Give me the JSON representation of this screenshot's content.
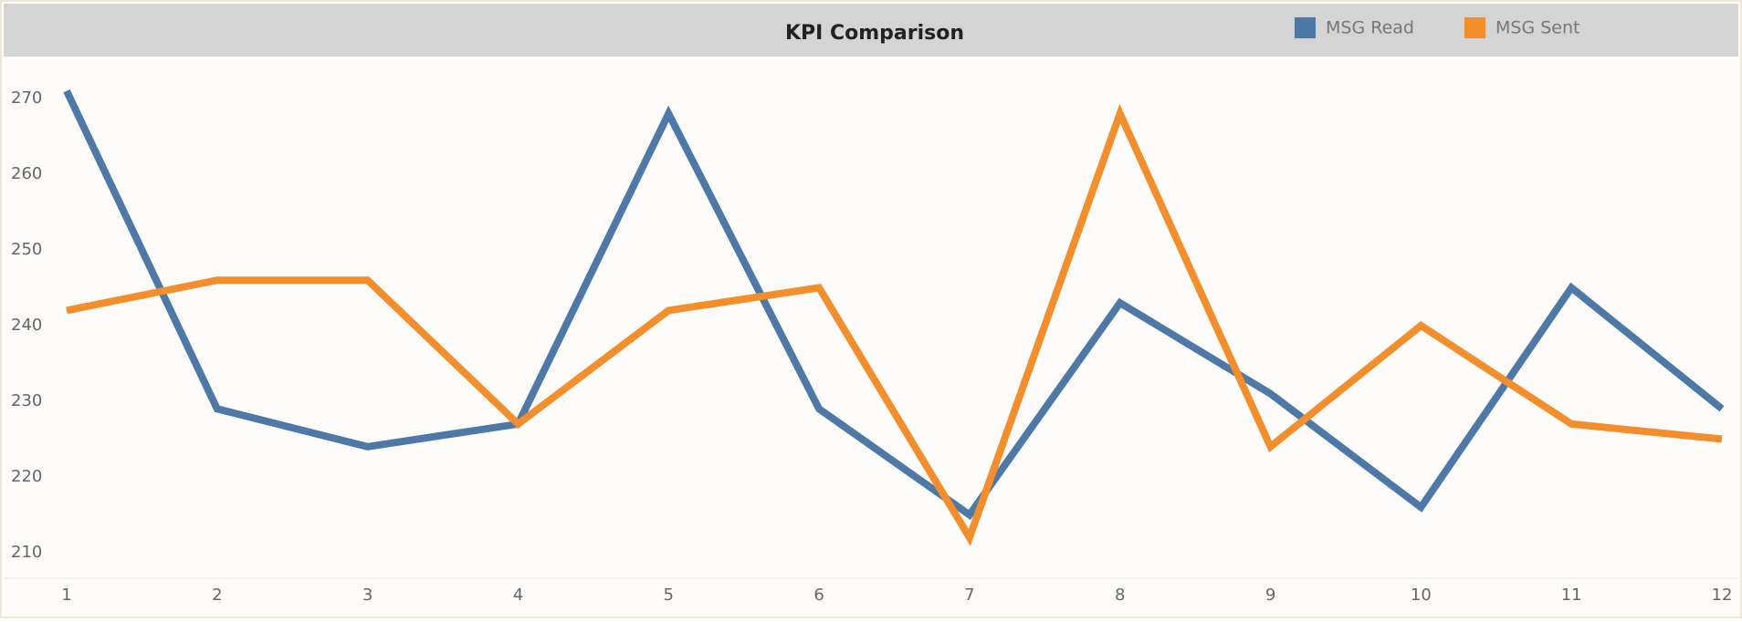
{
  "chart_data": {
    "type": "line",
    "title": "KPI Comparison",
    "categories": [
      "1",
      "2",
      "3",
      "4",
      "5",
      "6",
      "7",
      "8",
      "9",
      "10",
      "11",
      "12"
    ],
    "series": [
      {
        "name": "MSG Read",
        "color": "#4e79a7",
        "values": [
          271,
          229,
          224,
          227,
          268,
          229,
          215,
          243,
          231,
          216,
          245,
          229
        ]
      },
      {
        "name": "MSG Sent",
        "color": "#f28e2b",
        "values": [
          242,
          246,
          246,
          227,
          242,
          245,
          212,
          268,
          224,
          240,
          227,
          225
        ]
      }
    ],
    "ylim": [
      208,
      274
    ],
    "yticks": [
      210,
      220,
      230,
      240,
      250,
      260,
      270
    ],
    "grid": false,
    "legend": "top-right"
  }
}
